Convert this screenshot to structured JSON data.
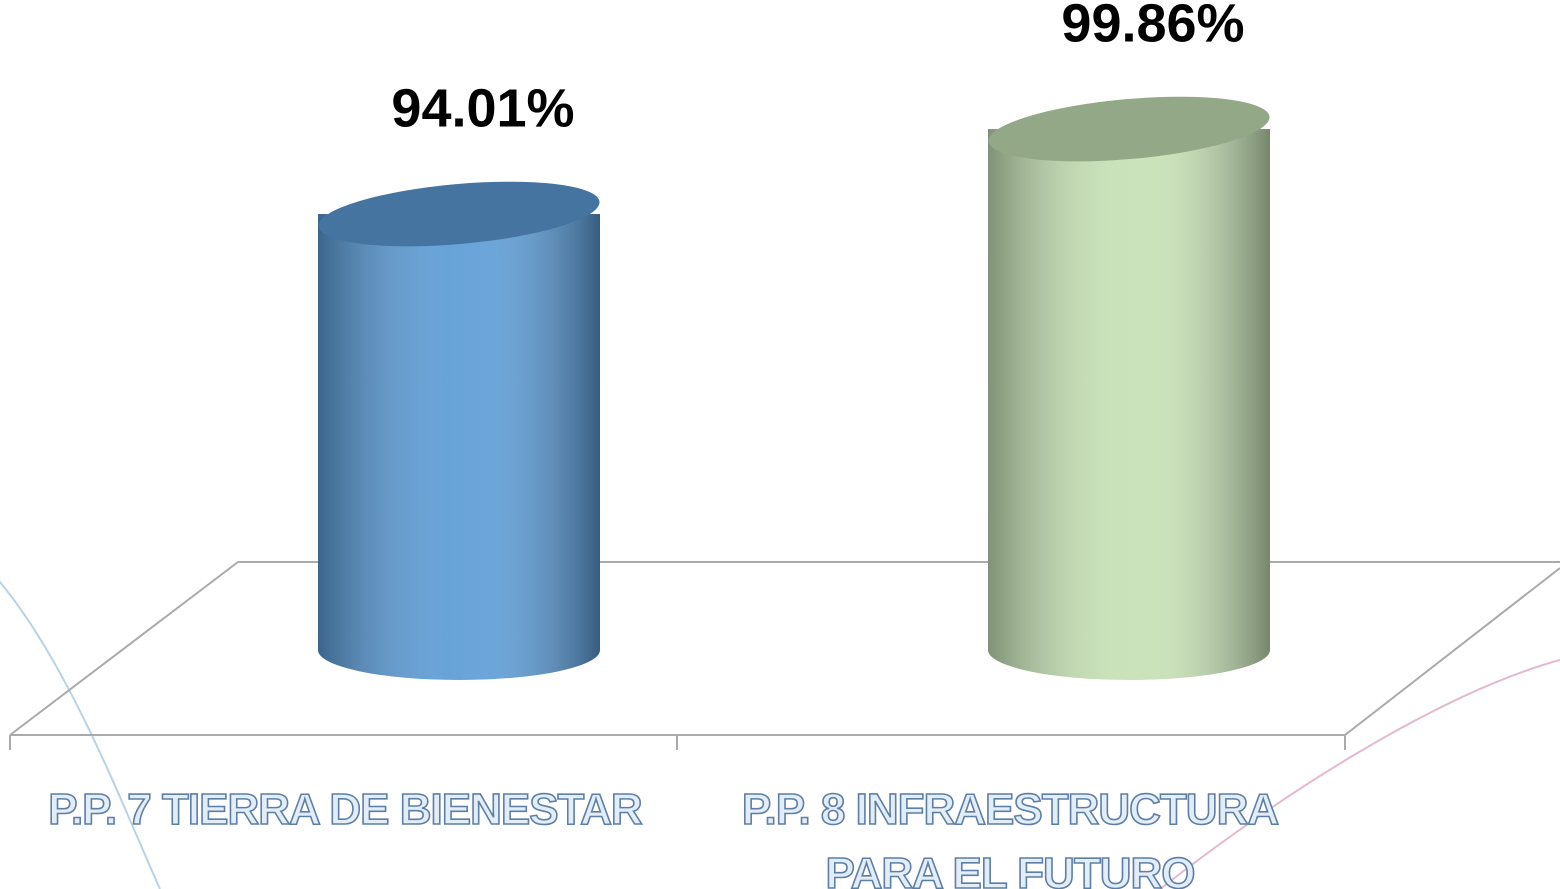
{
  "chart_data": {
    "type": "cylinder",
    "categories": [
      "P.P. 7 TIERRA DE BIENESTAR",
      "P.P. 8 INFRAESTRUCTURA PARA EL FUTURO"
    ],
    "values": [
      94.01,
      99.86
    ],
    "value_labels": [
      "94.01%",
      "99.86%"
    ],
    "colors": [
      "#5b9bd5",
      "#c5e0b4"
    ],
    "ylim": [
      64,
      100
    ]
  }
}
